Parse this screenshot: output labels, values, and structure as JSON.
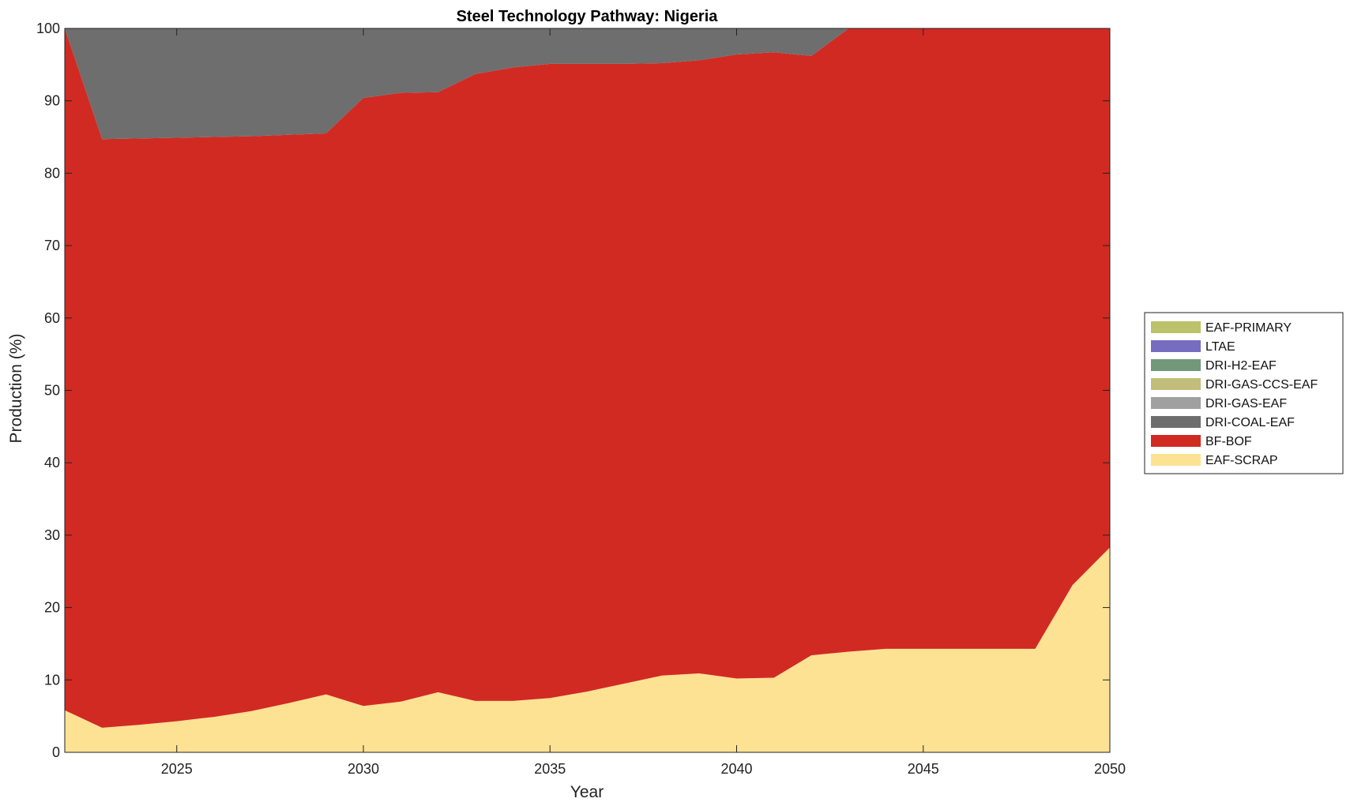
{
  "chart_data": {
    "type": "area",
    "title": "Steel Technology Pathway: Nigeria",
    "xlabel": "Year",
    "ylabel": "Production (%)",
    "xlim": [
      2022,
      2050
    ],
    "ylim": [
      0,
      100
    ],
    "x_ticks": [
      2025,
      2030,
      2035,
      2040,
      2045,
      2050
    ],
    "y_ticks": [
      0,
      10,
      20,
      30,
      40,
      50,
      60,
      70,
      80,
      90,
      100
    ],
    "grid": false,
    "legend_position": "right",
    "x": [
      2022,
      2023,
      2024,
      2025,
      2026,
      2027,
      2028,
      2029,
      2030,
      2031,
      2032,
      2033,
      2034,
      2035,
      2036,
      2037,
      2038,
      2039,
      2040,
      2041,
      2042,
      2043,
      2044,
      2045,
      2046,
      2047,
      2048,
      2049,
      2050
    ],
    "series": [
      {
        "name": "EAF-SCRAP",
        "color": "#FDE293",
        "values": [
          5.8,
          3.4,
          3.8,
          4.3,
          4.9,
          5.7,
          6.8,
          8.0,
          6.4,
          7.0,
          8.3,
          7.1,
          7.1,
          7.5,
          8.4,
          9.5,
          10.6,
          10.9,
          10.2,
          10.3,
          13.4,
          13.9,
          14.3,
          14.3,
          14.3,
          14.3,
          14.3,
          23.1,
          28.3
        ]
      },
      {
        "name": "BF-BOF",
        "color": "#D12A23",
        "values": [
          94.2,
          81.3,
          81.0,
          80.6,
          80.1,
          79.4,
          78.5,
          77.5,
          84.0,
          84.1,
          82.9,
          86.6,
          87.5,
          87.6,
          86.7,
          85.6,
          84.6,
          84.7,
          86.2,
          86.4,
          82.8,
          86.1,
          85.7,
          85.7,
          85.7,
          85.7,
          85.7,
          76.9,
          71.7
        ]
      },
      {
        "name": "DRI-COAL-EAF",
        "color": "#6E6E6E",
        "values": [
          0,
          15.3,
          15.2,
          15.1,
          15.0,
          14.9,
          14.7,
          14.5,
          9.6,
          8.9,
          8.8,
          6.3,
          5.4,
          4.9,
          4.9,
          4.9,
          4.8,
          4.4,
          3.6,
          3.3,
          3.8,
          0,
          0,
          0,
          0,
          0,
          0,
          0,
          0
        ]
      },
      {
        "name": "DRI-GAS-EAF",
        "color": "#A0A0A0",
        "values": [
          0,
          0,
          0,
          0,
          0,
          0,
          0,
          0,
          0,
          0,
          0,
          0,
          0,
          0,
          0,
          0,
          0,
          0,
          0,
          0,
          0,
          0,
          0,
          0,
          0,
          0,
          0,
          0,
          0
        ]
      },
      {
        "name": "DRI-GAS-CCS-EAF",
        "color": "#C3BD7C",
        "values": [
          0,
          0,
          0,
          0,
          0,
          0,
          0,
          0,
          0,
          0,
          0,
          0,
          0,
          0,
          0,
          0,
          0,
          0,
          0,
          0,
          0,
          0,
          0,
          0,
          0,
          0,
          0,
          0,
          0
        ]
      },
      {
        "name": "DRI-H2-EAF",
        "color": "#739879",
        "values": [
          0,
          0,
          0,
          0,
          0,
          0,
          0,
          0,
          0,
          0,
          0,
          0,
          0,
          0,
          0,
          0,
          0,
          0,
          0,
          0,
          0,
          0,
          0,
          0,
          0,
          0,
          0,
          0,
          0
        ]
      },
      {
        "name": "LTAE",
        "color": "#776DC0",
        "values": [
          0,
          0,
          0,
          0,
          0,
          0,
          0,
          0,
          0,
          0,
          0,
          0,
          0,
          0,
          0,
          0,
          0,
          0,
          0,
          0,
          0,
          0,
          0,
          0,
          0,
          0,
          0,
          0,
          0
        ]
      },
      {
        "name": "EAF-PRIMARY",
        "color": "#BBC269",
        "values": [
          0,
          0,
          0,
          0,
          0,
          0,
          0,
          0,
          0,
          0,
          0,
          0,
          0,
          0,
          0,
          0,
          0,
          0,
          0,
          0,
          0,
          0,
          0,
          0,
          0,
          0,
          0,
          0,
          0
        ]
      }
    ],
    "legend_order": [
      "EAF-PRIMARY",
      "LTAE",
      "DRI-H2-EAF",
      "DRI-GAS-CCS-EAF",
      "DRI-GAS-EAF",
      "DRI-COAL-EAF",
      "BF-BOF",
      "EAF-SCRAP"
    ]
  }
}
